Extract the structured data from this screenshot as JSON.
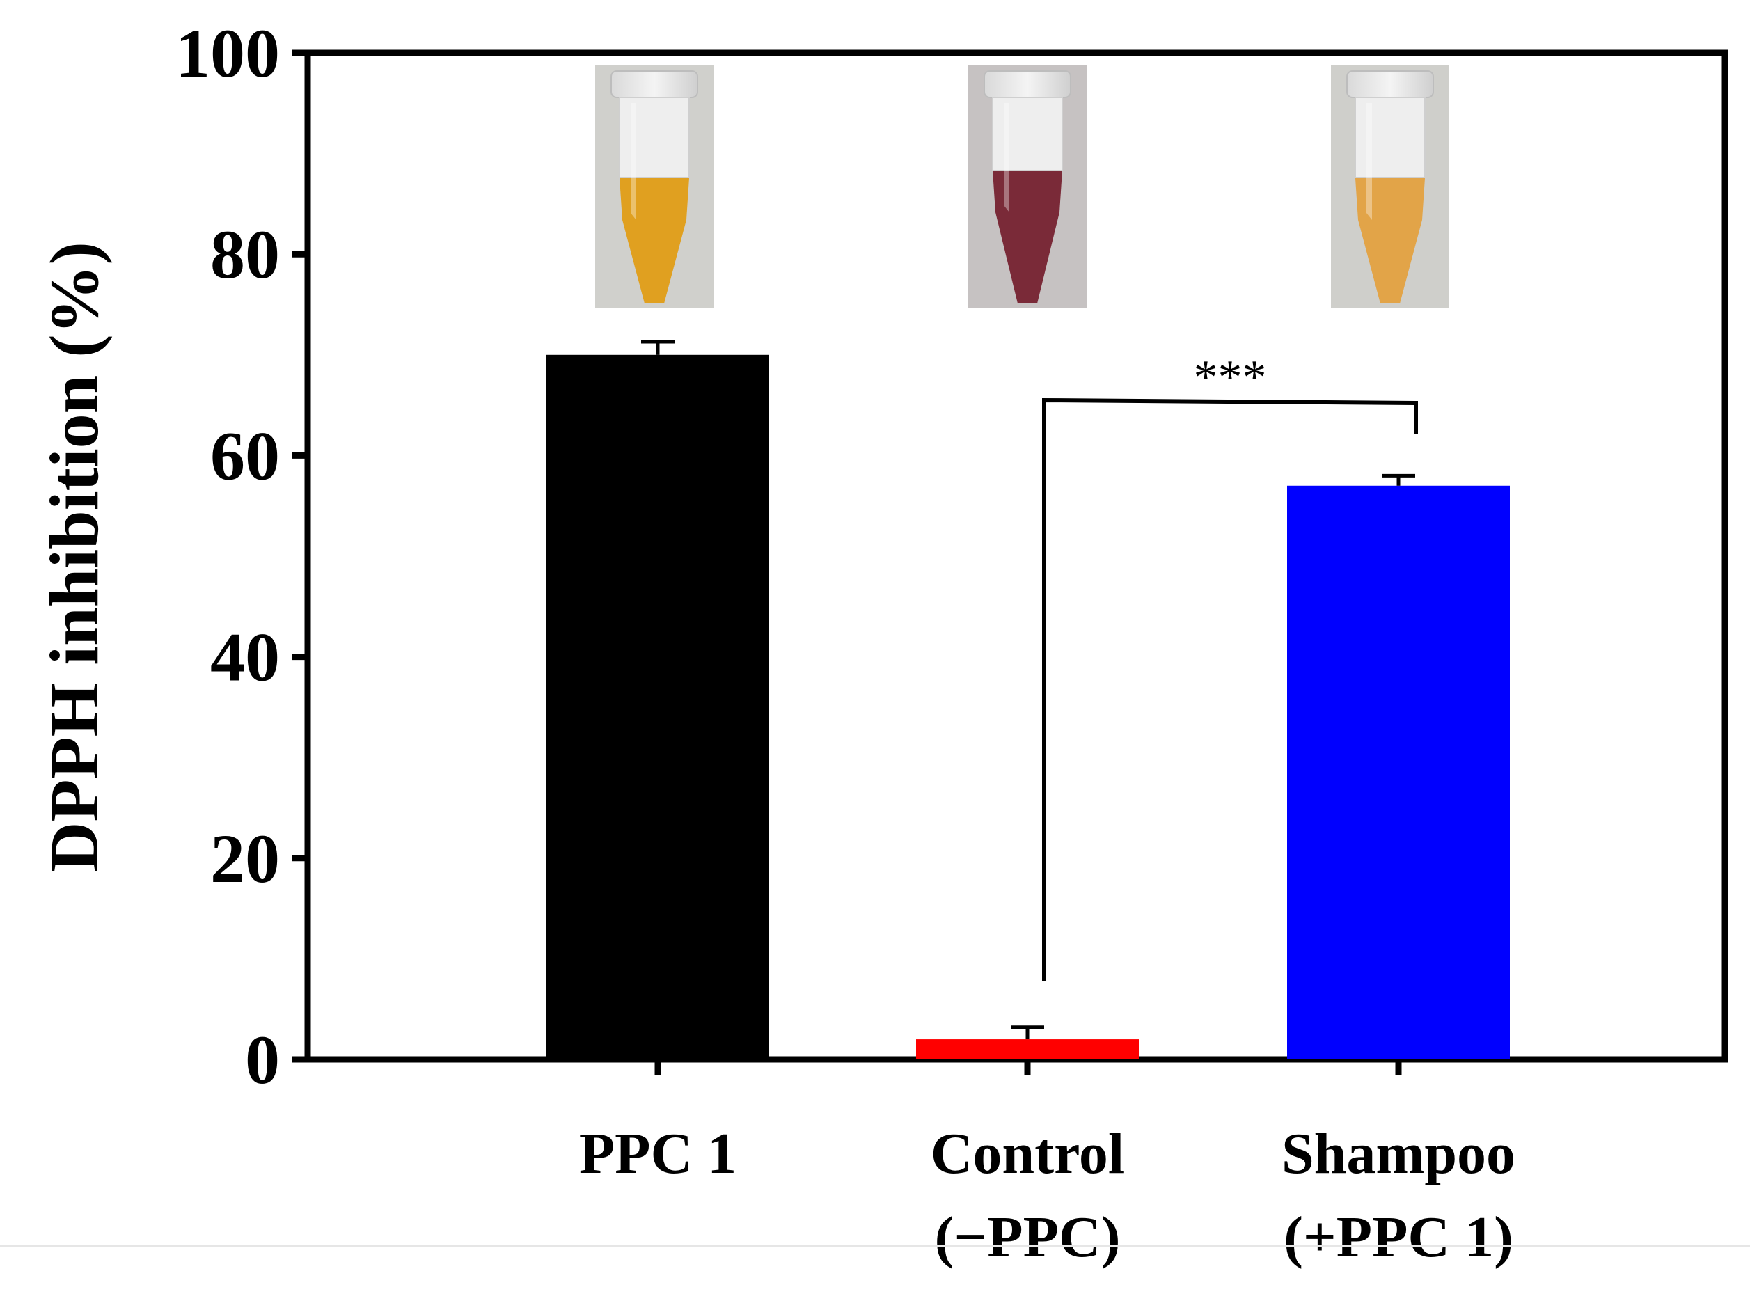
{
  "chart_data": {
    "type": "bar",
    "ylabel": "DPPH inhibition (%)",
    "ylim": [
      0,
      100
    ],
    "yticks": [
      0,
      20,
      40,
      60,
      80,
      100
    ],
    "categories": [
      {
        "line1": "PPC 1",
        "line2": ""
      },
      {
        "line1": "Control",
        "line2": "(−PPC)"
      },
      {
        "line1": "Shampoo",
        "line2": "(+PPC 1)"
      }
    ],
    "values": [
      70,
      2,
      57
    ],
    "errors": [
      1.3,
      1.2,
      1.0
    ],
    "colors": [
      "#000000",
      "#ff0000",
      "#0000ff"
    ],
    "significance": {
      "from_index": 1,
      "to_index": 2,
      "label": "***"
    },
    "tube_colors": [
      "#e0a020",
      "#7a2a38",
      "#e2a448"
    ],
    "grid": false,
    "legend": "none"
  }
}
